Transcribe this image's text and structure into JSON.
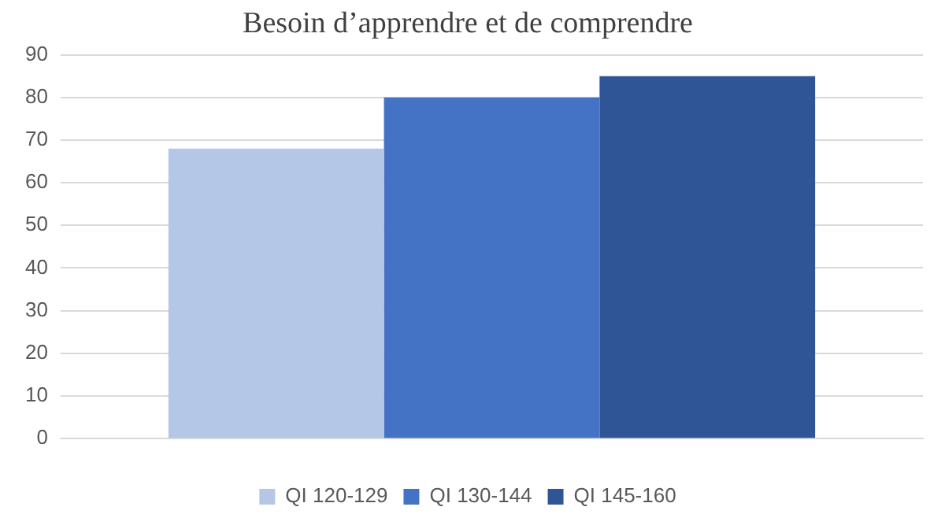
{
  "chart_data": {
    "type": "bar",
    "title": "Besoin d’apprendre et de comprendre",
    "categories": [
      null
    ],
    "series": [
      {
        "name": "QI 120-129",
        "color": "#b4c7e7",
        "values": [
          68
        ]
      },
      {
        "name": "QI 130-144",
        "color": "#4472c4",
        "values": [
          80
        ]
      },
      {
        "name": "QI 145-160",
        "color": "#2f5597",
        "values": [
          85
        ]
      }
    ],
    "ylim": [
      0,
      90
    ],
    "yticks": [
      0,
      10,
      20,
      30,
      40,
      50,
      60,
      70,
      80,
      90
    ],
    "grid": "y",
    "legend": "bottom"
  }
}
